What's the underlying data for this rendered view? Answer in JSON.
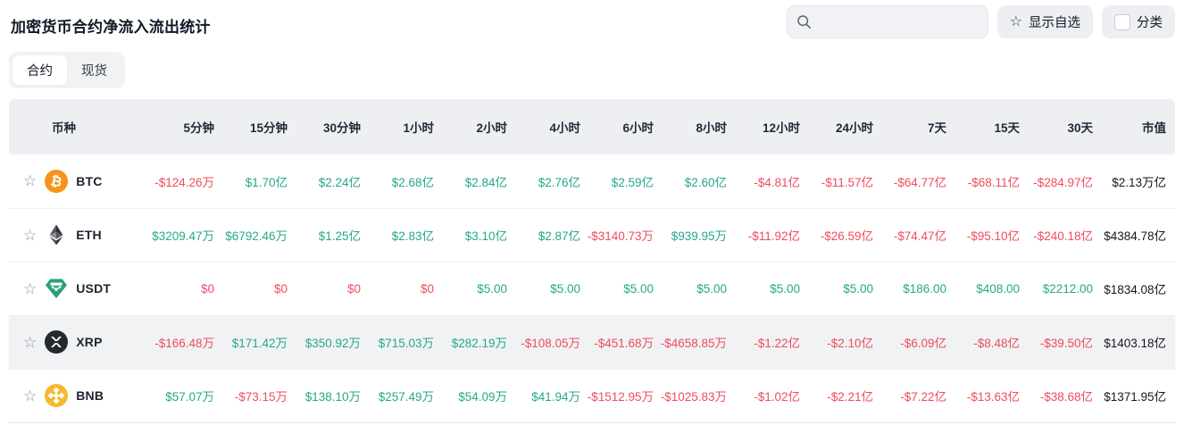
{
  "page": {
    "title": "加密货币合约净流入流出统计"
  },
  "toolbar": {
    "search": {
      "value": "",
      "icon": "search-icon"
    },
    "favorites_button": {
      "label": "显示自选",
      "icon": "star-icon"
    },
    "category_button": {
      "label": "分类",
      "checkbox_checked": false
    }
  },
  "tabs": [
    {
      "label": "合约",
      "active": true
    },
    {
      "label": "现货",
      "active": false
    }
  ],
  "colors": {
    "positive": "#26a78b",
    "negative": "#f04b5d",
    "btc": "#f7931a",
    "usdt": "#26a17b",
    "xrp": "#23292f",
    "bnb": "#f3ba2f"
  },
  "table": {
    "columns": [
      "币种",
      "5分钟",
      "15分钟",
      "30分钟",
      "1小时",
      "2小时",
      "4小时",
      "6小时",
      "8小时",
      "12小时",
      "24小时",
      "7天",
      "15天",
      "30天",
      "市值"
    ],
    "rows": [
      {
        "symbol": "BTC",
        "icon": "btc-icon",
        "highlighted": false,
        "market_cap": "$2.13万亿",
        "values": [
          {
            "t": "-$124.26万",
            "c": "neg"
          },
          {
            "t": "$1.70亿",
            "c": "pos"
          },
          {
            "t": "$2.24亿",
            "c": "pos"
          },
          {
            "t": "$2.68亿",
            "c": "pos"
          },
          {
            "t": "$2.84亿",
            "c": "pos"
          },
          {
            "t": "$2.76亿",
            "c": "pos"
          },
          {
            "t": "$2.59亿",
            "c": "pos"
          },
          {
            "t": "$2.60亿",
            "c": "pos"
          },
          {
            "t": "-$4.81亿",
            "c": "neg"
          },
          {
            "t": "-$11.57亿",
            "c": "neg"
          },
          {
            "t": "-$64.77亿",
            "c": "neg"
          },
          {
            "t": "-$68.11亿",
            "c": "neg"
          },
          {
            "t": "-$284.97亿",
            "c": "neg"
          }
        ]
      },
      {
        "symbol": "ETH",
        "icon": "eth-icon",
        "highlighted": false,
        "market_cap": "$4384.78亿",
        "values": [
          {
            "t": "$3209.47万",
            "c": "pos"
          },
          {
            "t": "$6792.46万",
            "c": "pos"
          },
          {
            "t": "$1.25亿",
            "c": "pos"
          },
          {
            "t": "$2.83亿",
            "c": "pos"
          },
          {
            "t": "$3.10亿",
            "c": "pos"
          },
          {
            "t": "$2.87亿",
            "c": "pos"
          },
          {
            "t": "-$3140.73万",
            "c": "neg"
          },
          {
            "t": "$939.95万",
            "c": "pos"
          },
          {
            "t": "-$11.92亿",
            "c": "neg"
          },
          {
            "t": "-$26.59亿",
            "c": "neg"
          },
          {
            "t": "-$74.47亿",
            "c": "neg"
          },
          {
            "t": "-$95.10亿",
            "c": "neg"
          },
          {
            "t": "-$240.18亿",
            "c": "neg"
          }
        ]
      },
      {
        "symbol": "USDT",
        "icon": "usdt-icon",
        "highlighted": false,
        "market_cap": "$1834.08亿",
        "values": [
          {
            "t": "$0",
            "c": "neg"
          },
          {
            "t": "$0",
            "c": "neg"
          },
          {
            "t": "$0",
            "c": "neg"
          },
          {
            "t": "$0",
            "c": "neg"
          },
          {
            "t": "$5.00",
            "c": "pos"
          },
          {
            "t": "$5.00",
            "c": "pos"
          },
          {
            "t": "$5.00",
            "c": "pos"
          },
          {
            "t": "$5.00",
            "c": "pos"
          },
          {
            "t": "$5.00",
            "c": "pos"
          },
          {
            "t": "$5.00",
            "c": "pos"
          },
          {
            "t": "$186.00",
            "c": "pos"
          },
          {
            "t": "$408.00",
            "c": "pos"
          },
          {
            "t": "$2212.00",
            "c": "pos"
          }
        ]
      },
      {
        "symbol": "XRP",
        "icon": "xrp-icon",
        "highlighted": true,
        "market_cap": "$1403.18亿",
        "values": [
          {
            "t": "-$166.48万",
            "c": "neg"
          },
          {
            "t": "$171.42万",
            "c": "pos"
          },
          {
            "t": "$350.92万",
            "c": "pos"
          },
          {
            "t": "$715.03万",
            "c": "pos"
          },
          {
            "t": "$282.19万",
            "c": "pos"
          },
          {
            "t": "-$108.05万",
            "c": "neg"
          },
          {
            "t": "-$451.68万",
            "c": "neg"
          },
          {
            "t": "-$4658.85万",
            "c": "neg"
          },
          {
            "t": "-$1.22亿",
            "c": "neg"
          },
          {
            "t": "-$2.10亿",
            "c": "neg"
          },
          {
            "t": "-$6.09亿",
            "c": "neg"
          },
          {
            "t": "-$8.48亿",
            "c": "neg"
          },
          {
            "t": "-$39.50亿",
            "c": "neg"
          }
        ]
      },
      {
        "symbol": "BNB",
        "icon": "bnb-icon",
        "highlighted": false,
        "market_cap": "$1371.95亿",
        "values": [
          {
            "t": "$57.07万",
            "c": "pos"
          },
          {
            "t": "-$73.15万",
            "c": "neg"
          },
          {
            "t": "$138.10万",
            "c": "pos"
          },
          {
            "t": "$257.49万",
            "c": "pos"
          },
          {
            "t": "$54.09万",
            "c": "pos"
          },
          {
            "t": "$41.94万",
            "c": "pos"
          },
          {
            "t": "-$1512.95万",
            "c": "neg"
          },
          {
            "t": "-$1025.83万",
            "c": "neg"
          },
          {
            "t": "-$1.02亿",
            "c": "neg"
          },
          {
            "t": "-$2.21亿",
            "c": "neg"
          },
          {
            "t": "-$7.22亿",
            "c": "neg"
          },
          {
            "t": "-$13.63亿",
            "c": "neg"
          },
          {
            "t": "-$38.68亿",
            "c": "neg"
          }
        ]
      }
    ]
  }
}
